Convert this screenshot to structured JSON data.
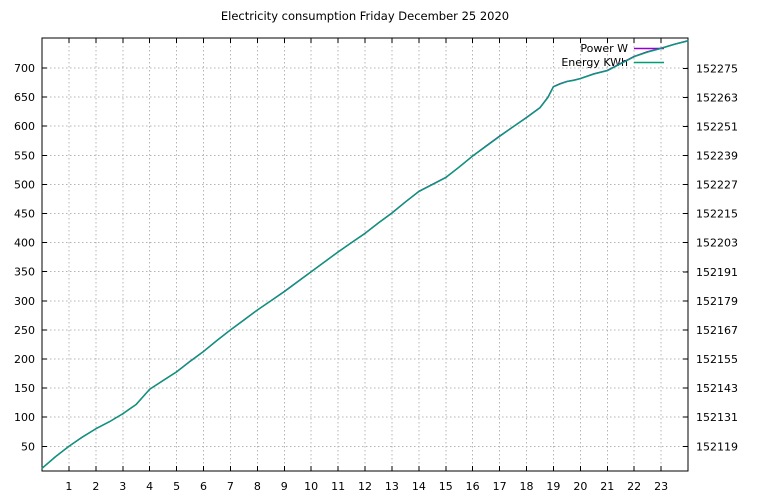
{
  "chart_data": {
    "type": "line",
    "title": "Electricity consumption Friday December 25 2020",
    "xlabel": "",
    "ylabel_left": "",
    "ylabel_right": "",
    "grid": true,
    "legend_position": "top-right-inside",
    "xlim": [
      0,
      24
    ],
    "ylim_left": [
      7.5,
      751.6
    ],
    "ylim_right": [
      152108.8,
      152287.5
    ],
    "x_ticks": [
      1,
      2,
      3,
      4,
      5,
      6,
      7,
      8,
      9,
      10,
      11,
      12,
      13,
      14,
      15,
      16,
      17,
      18,
      19,
      20,
      21,
      22,
      23
    ],
    "left_ticks": [
      50,
      100,
      150,
      200,
      250,
      300,
      350,
      400,
      450,
      500,
      550,
      600,
      650,
      700
    ],
    "right_ticks": [
      152119,
      152131,
      152143,
      152155,
      152167,
      152179,
      152191,
      152203,
      152215,
      152227,
      152239,
      152251,
      152263,
      152275
    ],
    "x": [
      0,
      0.5,
      1,
      1.5,
      2,
      2.5,
      3,
      3.5,
      4,
      4.5,
      5,
      5.5,
      6,
      6.5,
      7,
      7.5,
      8,
      8.5,
      9,
      9.5,
      10,
      10.5,
      11,
      11.5,
      12,
      12.5,
      13,
      13.5,
      14,
      14.5,
      15,
      15.5,
      16,
      16.5,
      17,
      17.5,
      18,
      18.5,
      18.8,
      19,
      19.25,
      19.5,
      19.75,
      20,
      20.5,
      21,
      21.5,
      22,
      22.5,
      23,
      23.5,
      24
    ],
    "series": [
      {
        "name": "Power W",
        "color": "#9400d3",
        "yaxis": "left",
        "values": [
          12,
          32,
          50,
          66,
          80,
          92,
          106,
          122,
          148,
          163,
          178,
          196,
          213,
          232,
          250,
          267,
          284,
          300,
          316,
          333,
          350,
          367,
          384,
          400,
          416,
          434,
          451,
          470,
          488,
          500,
          512,
          530,
          549,
          566,
          583,
          599,
          615,
          632,
          650,
          668,
          673,
          677,
          679,
          682,
          690,
          696,
          708,
          720,
          728,
          734,
          741,
          747
        ]
      },
      {
        "name": "Energy KWh",
        "color": "#009e73",
        "yaxis": "right",
        "values": [
          152109.9,
          152114.7,
          152119.0,
          152122.8,
          152126.2,
          152129.1,
          152132.4,
          152136.3,
          152142.5,
          152146.1,
          152149.7,
          152154.0,
          152158.1,
          152162.7,
          152167.0,
          152171.1,
          152175.2,
          152179.0,
          152182.8,
          152186.9,
          152191.0,
          152195.1,
          152199.2,
          152203.0,
          152206.8,
          152211.2,
          152215.2,
          152219.8,
          152224.1,
          152227.0,
          152229.9,
          152234.2,
          152238.8,
          152242.8,
          152246.9,
          152250.8,
          152254.6,
          152258.7,
          152263.0,
          152267.3,
          152268.5,
          152269.5,
          152270.0,
          152270.7,
          152272.6,
          152274.0,
          152276.9,
          152279.8,
          152281.7,
          152283.2,
          152284.9,
          152286.3
        ]
      }
    ],
    "colors": {
      "background": "#ffffff",
      "border": "#000000",
      "grid": "#b4b4b4",
      "text": "#000000"
    }
  }
}
